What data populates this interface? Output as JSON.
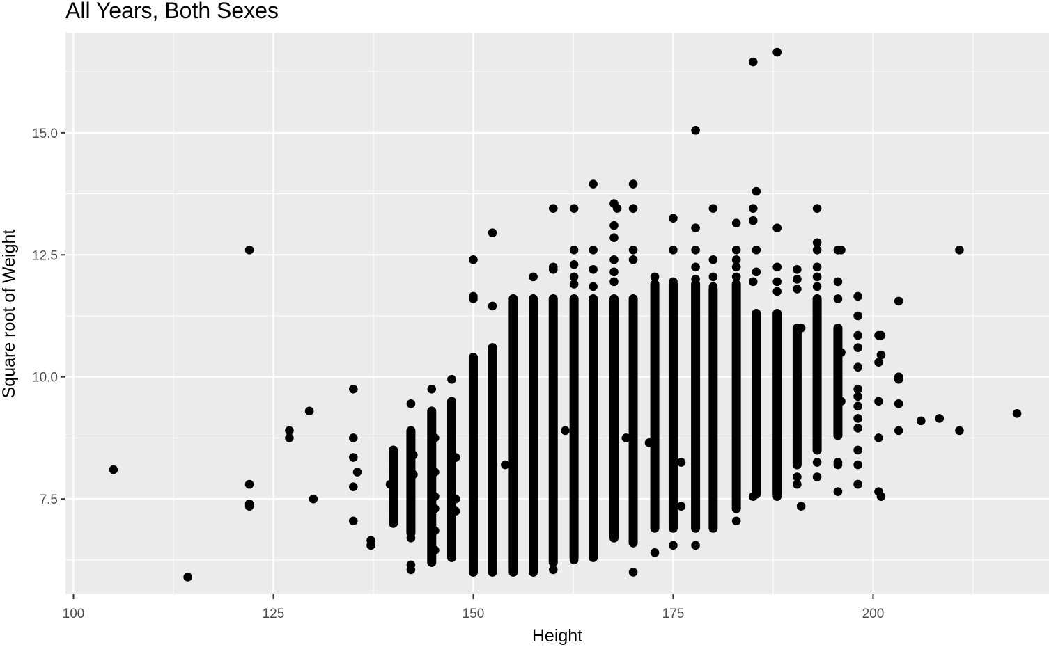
{
  "chart_data": {
    "type": "scatter",
    "title": "All Years, Both Sexes",
    "xlabel": "Height",
    "ylabel": "Square root of Weight",
    "xlim": [
      99,
      222
    ],
    "ylim": [
      5.55,
      17.05
    ],
    "xticks": [
      100,
      125,
      150,
      175,
      200
    ],
    "xtick_labels": [
      "100",
      "125",
      "150",
      "175",
      "200"
    ],
    "yticks": [
      7.5,
      10.0,
      12.5,
      15.0
    ],
    "ytick_labels": [
      "7.5",
      "10.0",
      "12.5",
      "15.0"
    ],
    "x_minor": [
      112.5,
      137.5,
      162.5,
      187.5,
      212.5
    ],
    "y_minor": [
      6.25,
      8.75,
      11.25,
      13.75,
      16.25
    ],
    "grid": true,
    "legend": "none",
    "colors": {
      "panel": "#ebebeb",
      "grid": "#ffffff",
      "point": "#000000",
      "tick": "#4d4d4d"
    },
    "columns": [
      {
        "x": 140.0,
        "y0": 7.0,
        "y1": 8.5
      },
      {
        "x": 142.2,
        "y0": 6.8,
        "y1": 8.9
      },
      {
        "x": 144.8,
        "y0": 6.2,
        "y1": 9.3
      },
      {
        "x": 147.3,
        "y0": 6.3,
        "y1": 9.5
      },
      {
        "x": 150.0,
        "y0": 6.0,
        "y1": 10.4
      },
      {
        "x": 152.4,
        "y0": 6.0,
        "y1": 10.6
      },
      {
        "x": 155.0,
        "y0": 6.0,
        "y1": 11.6
      },
      {
        "x": 157.5,
        "y0": 6.0,
        "y1": 11.6
      },
      {
        "x": 160.0,
        "y0": 6.2,
        "y1": 11.6
      },
      {
        "x": 162.6,
        "y0": 6.3,
        "y1": 11.6
      },
      {
        "x": 165.0,
        "y0": 6.3,
        "y1": 11.6
      },
      {
        "x": 167.6,
        "y0": 6.7,
        "y1": 11.6
      },
      {
        "x": 170.0,
        "y0": 6.6,
        "y1": 11.6
      },
      {
        "x": 172.7,
        "y0": 6.9,
        "y1": 11.9
      },
      {
        "x": 175.0,
        "y0": 6.9,
        "y1": 11.9
      },
      {
        "x": 177.8,
        "y0": 6.9,
        "y1": 11.9
      },
      {
        "x": 180.0,
        "y0": 6.9,
        "y1": 11.8
      },
      {
        "x": 182.9,
        "y0": 7.3,
        "y1": 11.9
      },
      {
        "x": 185.4,
        "y0": 7.6,
        "y1": 11.3
      },
      {
        "x": 188.0,
        "y0": 7.6,
        "y1": 11.3
      },
      {
        "x": 190.5,
        "y0": 8.2,
        "y1": 11.0
      },
      {
        "x": 193.0,
        "y0": 8.5,
        "y1": 11.6
      },
      {
        "x": 195.6,
        "y0": 8.8,
        "y1": 11.0
      }
    ],
    "points": [
      [
        105,
        8.1
      ],
      [
        114.3,
        5.9
      ],
      [
        122,
        12.6
      ],
      [
        122,
        7.8
      ],
      [
        122,
        7.4
      ],
      [
        122,
        7.35
      ],
      [
        127,
        8.9
      ],
      [
        127,
        8.75
      ],
      [
        129.5,
        9.3
      ],
      [
        130,
        7.5
      ],
      [
        135,
        9.75
      ],
      [
        135,
        8.75
      ],
      [
        135,
        8.35
      ],
      [
        135,
        7.75
      ],
      [
        135,
        7.05
      ],
      [
        135.5,
        8.05
      ],
      [
        137.2,
        6.65
      ],
      [
        137.2,
        6.55
      ],
      [
        140,
        8.5
      ],
      [
        140,
        8.2
      ],
      [
        140,
        7.95
      ],
      [
        140,
        7.9
      ],
      [
        140,
        7.75
      ],
      [
        140,
        7.5
      ],
      [
        140,
        7.2
      ],
      [
        140,
        7.0
      ],
      [
        139.6,
        7.8
      ],
      [
        142.2,
        9.45
      ],
      [
        142.2,
        8.85
      ],
      [
        142.2,
        8.65
      ],
      [
        142.2,
        8.35
      ],
      [
        142.2,
        7.95
      ],
      [
        142.2,
        7.6
      ],
      [
        142.2,
        7.4
      ],
      [
        142.2,
        7.2
      ],
      [
        142.2,
        7.0
      ],
      [
        142.2,
        6.85
      ],
      [
        142.2,
        6.7
      ],
      [
        142.2,
        6.15
      ],
      [
        142.2,
        6.05
      ],
      [
        142.5,
        8.4
      ],
      [
        142.5,
        8.0
      ],
      [
        144.8,
        9.75
      ],
      [
        144.8,
        9.25
      ],
      [
        144.8,
        9.2
      ],
      [
        144.8,
        8.75
      ],
      [
        144.8,
        8.5
      ],
      [
        144.8,
        8.25
      ],
      [
        144.8,
        7.95
      ],
      [
        144.8,
        7.65
      ],
      [
        144.8,
        7.0
      ],
      [
        144.8,
        6.55
      ],
      [
        144.8,
        6.2
      ],
      [
        145.2,
        8.75
      ],
      [
        145.2,
        8.05
      ],
      [
        145.2,
        7.55
      ],
      [
        145.2,
        7.3
      ],
      [
        145.2,
        6.85
      ],
      [
        145.2,
        6.45
      ],
      [
        147.3,
        9.95
      ],
      [
        147.3,
        9.5
      ],
      [
        147.3,
        8.9
      ],
      [
        147.3,
        8.5
      ],
      [
        147.3,
        8.2
      ],
      [
        147.3,
        7.75
      ],
      [
        147.3,
        6.75
      ],
      [
        147.3,
        6.3
      ],
      [
        147.8,
        8.35
      ],
      [
        147.8,
        7.5
      ],
      [
        147.8,
        7.25
      ],
      [
        150,
        12.4
      ],
      [
        150,
        11.65
      ],
      [
        150,
        11.6
      ],
      [
        150,
        10.4
      ],
      [
        150,
        10.2
      ],
      [
        150,
        9.95
      ],
      [
        150,
        6.1
      ],
      [
        150,
        6.0
      ],
      [
        152.4,
        12.95
      ],
      [
        152.4,
        11.45
      ],
      [
        152.4,
        10.6
      ],
      [
        152.4,
        10.45
      ],
      [
        152.4,
        10.2
      ],
      [
        152.4,
        9.9
      ],
      [
        152.4,
        6.15
      ],
      [
        152.4,
        6.05
      ],
      [
        152.4,
        6.0
      ],
      [
        154,
        8.2
      ],
      [
        155,
        11.6
      ],
      [
        155,
        11.4
      ],
      [
        155,
        11.05
      ],
      [
        155,
        10.75
      ],
      [
        155,
        10.5
      ],
      [
        155,
        10.25
      ],
      [
        155,
        6.15
      ],
      [
        155,
        6.05
      ],
      [
        155,
        6.0
      ],
      [
        157.5,
        12.05
      ],
      [
        157.5,
        11.6
      ],
      [
        157.5,
        6.1
      ],
      [
        157.5,
        6.0
      ],
      [
        160,
        13.45
      ],
      [
        160,
        12.25
      ],
      [
        160,
        12.2
      ],
      [
        160,
        11.6
      ],
      [
        160,
        6.05
      ],
      [
        161.5,
        8.9
      ],
      [
        162.6,
        13.45
      ],
      [
        162.6,
        12.6
      ],
      [
        162.6,
        12.3
      ],
      [
        162.6,
        12.05
      ],
      [
        162.6,
        11.9
      ],
      [
        162.6,
        6.25
      ],
      [
        165,
        13.95
      ],
      [
        165,
        12.6
      ],
      [
        165,
        12.2
      ],
      [
        165,
        11.85
      ],
      [
        165,
        6.3
      ],
      [
        167.6,
        13.55
      ],
      [
        167.6,
        13.1
      ],
      [
        167.6,
        12.85
      ],
      [
        167.6,
        12.4
      ],
      [
        167.6,
        12.15
      ],
      [
        167.6,
        11.95
      ],
      [
        168,
        13.45
      ],
      [
        169.1,
        8.75
      ],
      [
        170,
        13.95
      ],
      [
        170,
        13.45
      ],
      [
        170,
        12.6
      ],
      [
        170,
        12.4
      ],
      [
        170,
        6.0
      ],
      [
        172,
        8.65
      ],
      [
        172.7,
        12.05
      ],
      [
        172.7,
        11.9
      ],
      [
        172.7,
        6.4
      ],
      [
        175,
        13.25
      ],
      [
        175,
        12.6
      ],
      [
        175,
        11.95
      ],
      [
        175,
        6.55
      ],
      [
        176,
        8.25
      ],
      [
        176,
        7.35
      ],
      [
        177.8,
        15.05
      ],
      [
        177.8,
        13.05
      ],
      [
        177.8,
        12.6
      ],
      [
        177.8,
        12.25
      ],
      [
        177.8,
        12.0
      ],
      [
        177.8,
        6.55
      ],
      [
        180,
        13.45
      ],
      [
        180,
        12.4
      ],
      [
        180,
        12.05
      ],
      [
        180,
        11.85
      ],
      [
        182.9,
        13.15
      ],
      [
        182.9,
        12.6
      ],
      [
        182.9,
        12.4
      ],
      [
        182.9,
        12.25
      ],
      [
        182.9,
        12.05
      ],
      [
        182.9,
        7.05
      ],
      [
        185,
        16.45
      ],
      [
        185.4,
        13.8
      ],
      [
        185,
        13.45
      ],
      [
        185,
        13.2
      ],
      [
        185.4,
        12.6
      ],
      [
        185.4,
        12.15
      ],
      [
        185,
        11.95
      ],
      [
        185.4,
        7.7
      ],
      [
        185,
        7.55
      ],
      [
        188,
        16.65
      ],
      [
        188,
        13.05
      ],
      [
        188,
        12.25
      ],
      [
        188,
        11.95
      ],
      [
        188,
        11.75
      ],
      [
        188,
        7.55
      ],
      [
        190.5,
        12.2
      ],
      [
        190.5,
        12.0
      ],
      [
        190.5,
        11.8
      ],
      [
        190.5,
        7.95
      ],
      [
        190.5,
        7.8
      ],
      [
        191,
        11.0
      ],
      [
        191,
        7.35
      ],
      [
        193,
        13.45
      ],
      [
        193,
        12.75
      ],
      [
        193,
        12.6
      ],
      [
        193,
        12.25
      ],
      [
        193,
        12.05
      ],
      [
        193,
        11.85
      ],
      [
        193,
        11.6
      ],
      [
        193,
        8.25
      ],
      [
        193,
        7.95
      ],
      [
        195.6,
        12.6
      ],
      [
        195.6,
        11.95
      ],
      [
        195.6,
        11.6
      ],
      [
        195.6,
        8.25
      ],
      [
        195.6,
        8.2
      ],
      [
        195.6,
        7.65
      ],
      [
        196,
        12.6
      ],
      [
        196,
        10.5
      ],
      [
        196,
        9.5
      ],
      [
        198.1,
        11.65
      ],
      [
        198.1,
        11.25
      ],
      [
        198.1,
        10.85
      ],
      [
        198.1,
        10.6
      ],
      [
        198.1,
        10.2
      ],
      [
        198.1,
        9.75
      ],
      [
        198.1,
        9.6
      ],
      [
        198.1,
        9.4
      ],
      [
        198.1,
        9.15
      ],
      [
        198.1,
        8.95
      ],
      [
        198.1,
        8.5
      ],
      [
        198.1,
        8.2
      ],
      [
        198.1,
        7.8
      ],
      [
        200.7,
        10.85
      ],
      [
        200.7,
        10.3
      ],
      [
        200.7,
        9.5
      ],
      [
        200.7,
        8.75
      ],
      [
        200.7,
        7.65
      ],
      [
        201,
        10.85
      ],
      [
        201,
        10.45
      ],
      [
        201,
        7.55
      ],
      [
        203.2,
        11.55
      ],
      [
        203.2,
        10.0
      ],
      [
        203.2,
        9.95
      ],
      [
        203.2,
        9.45
      ],
      [
        203.2,
        8.9
      ],
      [
        206,
        9.1
      ],
      [
        208.3,
        9.15
      ],
      [
        210.8,
        12.6
      ],
      [
        210.8,
        8.9
      ],
      [
        218,
        9.25
      ]
    ]
  }
}
